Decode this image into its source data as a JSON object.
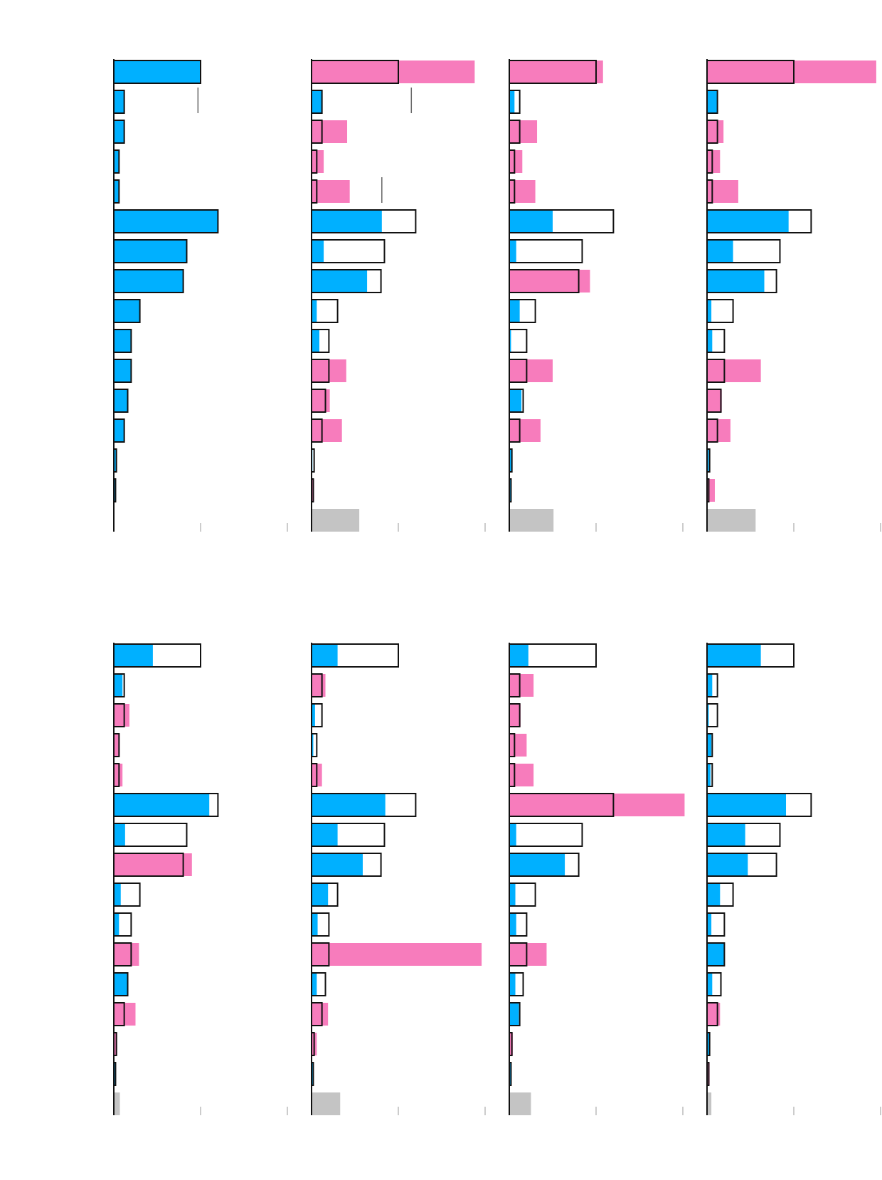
{
  "chart_data": {
    "type": "bar",
    "orientation": "horizontal",
    "title": "",
    "xlabel": "",
    "ylabel": "",
    "grid": false,
    "legend": "none",
    "xlim": [
      0,
      2
    ],
    "axis_ticks": [
      1,
      2
    ],
    "colors": {
      "outline": "#111111",
      "below_baseline": "#00b0ff",
      "above_baseline": "#f77cbc",
      "residual": "#c4c4c4",
      "tick": "#bbbbbb",
      "reference_marker": "#666666"
    },
    "baseline": {
      "name": "",
      "values": [
        1.0,
        0.12,
        0.12,
        0.06,
        0.06,
        1.2,
        0.84,
        0.8,
        0.3,
        0.2,
        0.2,
        0.16,
        0.12,
        0.03,
        0.02,
        0.0
      ]
    },
    "panels": [
      {
        "values": [
          1.0,
          0.12,
          0.12,
          0.06,
          0.06,
          1.2,
          0.84,
          0.8,
          0.3,
          0.2,
          0.2,
          0.16,
          0.12,
          0.03,
          0.02,
          0.0
        ],
        "reference_markers": [
          {
            "row": 1,
            "value": 0.97
          }
        ]
      },
      {
        "values": [
          1.88,
          0.12,
          0.41,
          0.14,
          0.44,
          0.81,
          0.14,
          0.64,
          0.06,
          0.09,
          0.4,
          0.21,
          0.35,
          0.01,
          0.03,
          0.55
        ],
        "reference_markers": [
          {
            "row": 1,
            "value": 1.15
          },
          {
            "row": 4,
            "value": 0.81
          }
        ]
      },
      {
        "values": [
          1.08,
          0.06,
          0.32,
          0.15,
          0.3,
          0.5,
          0.08,
          0.93,
          0.12,
          0.02,
          0.5,
          0.14,
          0.36,
          0.03,
          0.02,
          0.51
        ],
        "reference_markers": []
      },
      {
        "values": [
          1.95,
          0.12,
          0.19,
          0.15,
          0.36,
          0.94,
          0.3,
          0.66,
          0.05,
          0.06,
          0.62,
          0.17,
          0.27,
          0.02,
          0.09,
          0.56
        ],
        "reference_markers": []
      },
      {
        "values": [
          0.45,
          0.1,
          0.18,
          0.07,
          0.1,
          1.1,
          0.13,
          0.9,
          0.08,
          0.06,
          0.29,
          0.16,
          0.25,
          0.04,
          0.02,
          0.07
        ],
        "reference_markers": []
      },
      {
        "values": [
          0.3,
          0.16,
          0.04,
          0.02,
          0.12,
          0.85,
          0.3,
          0.59,
          0.19,
          0.07,
          1.96,
          0.06,
          0.19,
          0.06,
          0.02,
          0.33
        ],
        "reference_markers": []
      },
      {
        "values": [
          0.22,
          0.28,
          0.13,
          0.2,
          0.28,
          2.02,
          0.08,
          0.64,
          0.07,
          0.08,
          0.43,
          0.07,
          0.11,
          0.04,
          0.02,
          0.25
        ],
        "reference_markers": []
      },
      {
        "values": [
          0.62,
          0.06,
          0.02,
          0.05,
          0.04,
          0.91,
          0.44,
          0.47,
          0.15,
          0.05,
          0.2,
          0.06,
          0.15,
          0.03,
          0.03,
          0.05
        ],
        "reference_markers": []
      }
    ]
  }
}
